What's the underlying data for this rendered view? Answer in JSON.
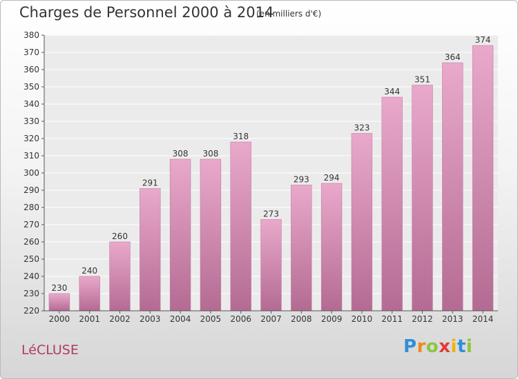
{
  "header": {
    "title": "Charges de Personnel 2000 à 2014",
    "unit_note": "(en milliers d'€)"
  },
  "footer": {
    "commune": "LéCLUSE",
    "logo_letters": [
      {
        "ch": "P",
        "color": "#2f8fd8"
      },
      {
        "ch": "r",
        "color": "#f08a1a"
      },
      {
        "ch": "o",
        "color": "#8dc63f"
      },
      {
        "ch": "x",
        "color": "#e23b3b"
      },
      {
        "ch": "i",
        "color": "#f0b400"
      },
      {
        "ch": "t",
        "color": "#2f8fd8"
      },
      {
        "ch": "i",
        "color": "#8dc63f"
      }
    ]
  },
  "chart_data": {
    "type": "bar",
    "title": "Charges de Personnel 2000 à 2014",
    "subtitle": "(en milliers d'€)",
    "categories": [
      "2000",
      "2001",
      "2002",
      "2003",
      "2004",
      "2005",
      "2006",
      "2007",
      "2008",
      "2009",
      "2010",
      "2011",
      "2012",
      "2013",
      "2014"
    ],
    "values": [
      230,
      240,
      260,
      291,
      308,
      308,
      318,
      273,
      293,
      294,
      323,
      344,
      351,
      364,
      374
    ],
    "ylim": [
      220,
      380
    ],
    "yticks": [
      220,
      230,
      240,
      250,
      260,
      270,
      280,
      290,
      300,
      310,
      320,
      330,
      340,
      350,
      360,
      370,
      380
    ],
    "grid": true,
    "bar_color": "#d98fb8",
    "bar_color_dark": "#b76b95"
  }
}
